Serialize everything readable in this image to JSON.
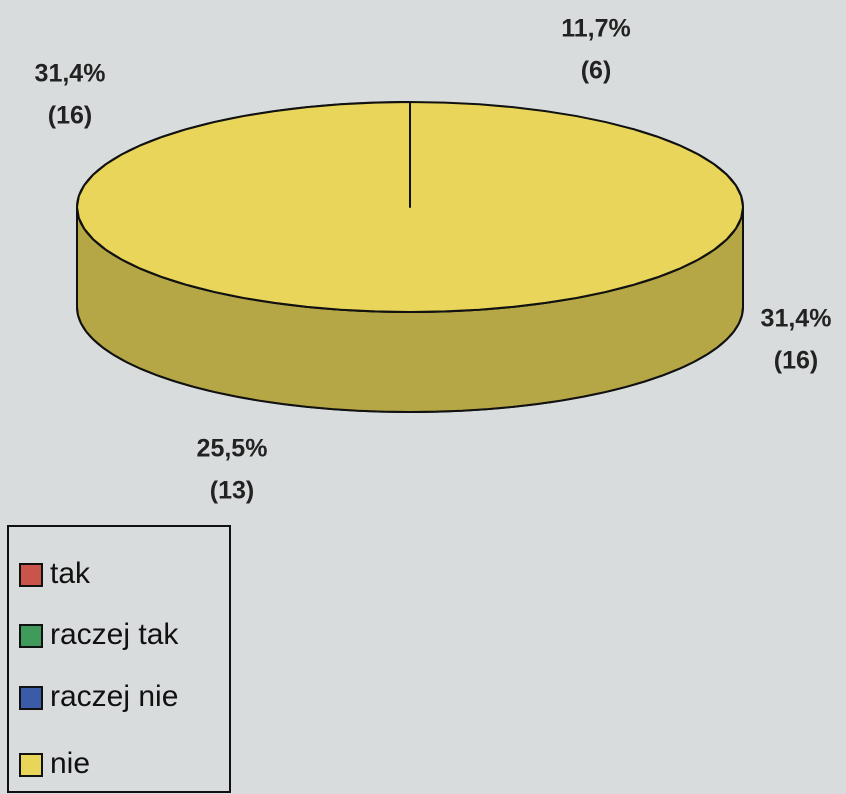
{
  "chart_data": {
    "type": "pie3d",
    "categories": [
      "tak",
      "raczej tak",
      "raczej nie",
      "nie"
    ],
    "values": [
      31.4,
      25.5,
      31.4,
      11.7
    ],
    "value_labels": [
      "31,4%",
      "25,5%",
      "31,4%",
      "11,7%"
    ],
    "counts": [
      16,
      13,
      16,
      6
    ],
    "count_labels": [
      "(16)",
      "(13)",
      "(16)",
      "(6)"
    ],
    "colors": [
      "#c9554a",
      "#3f9a5c",
      "#3b5aa8",
      "#e8d55a"
    ],
    "legend": "bottom-left"
  }
}
